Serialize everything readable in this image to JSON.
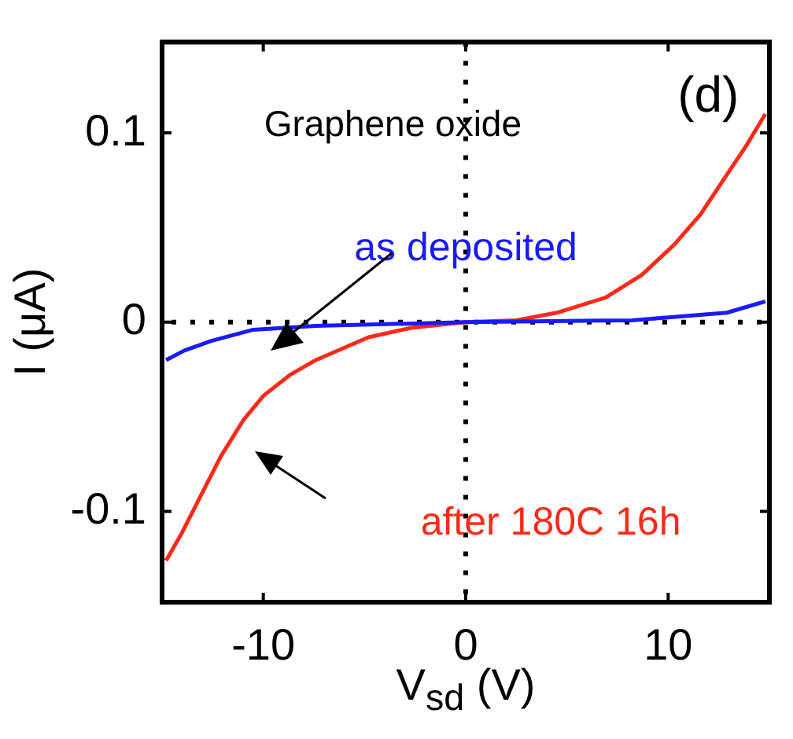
{
  "chart_data": {
    "type": "line",
    "xlabel": "V$_{sd}$ (V)",
    "ylabel": "I (μA)",
    "annotations": [
      "Graphene oxide",
      "(d)"
    ],
    "xlim": [
      -15,
      15
    ],
    "xticks": [
      -10,
      0,
      10
    ],
    "ylim": [
      -0.148,
      0.148
    ],
    "yticks": [
      -0.1,
      0,
      0.1
    ],
    "grid": false,
    "legend": false,
    "marker": "none",
    "line_style": "solid",
    "ref_lines": [
      {
        "axis": "x",
        "value": 0,
        "color": "#000000",
        "line_style": "dotted"
      },
      {
        "axis": "y",
        "value": 0,
        "color": "#000000",
        "line_style": "dotted"
      }
    ],
    "series": [
      {
        "name": "as deposited",
        "color": "#1a1aff",
        "x": [
          -14.8,
          -13.9,
          -12.6,
          -10.5,
          -7.4,
          0,
          8.2,
          12.9,
          14.8
        ],
        "values": [
          -0.02,
          -0.015,
          -0.01,
          -0.004,
          -0.002,
          0,
          0.001,
          0.005,
          0.011
        ]
      },
      {
        "name": "after 180C 16h",
        "color": "#ff2a1a",
        "x": [
          -14.8,
          -14.0,
          -13.1,
          -12.1,
          -11.0,
          -10.0,
          -8.7,
          -7.4,
          -6.1,
          -4.8,
          -2.7,
          0,
          2.5,
          4.5,
          6.9,
          8.7,
          10.3,
          11.6,
          12.9,
          13.9,
          14.8
        ],
        "values": [
          -0.126,
          -0.111,
          -0.092,
          -0.071,
          -0.052,
          -0.039,
          -0.028,
          -0.02,
          -0.014,
          -0.008,
          -0.003,
          0,
          0.001,
          0.005,
          0.013,
          0.025,
          0.041,
          0.057,
          0.078,
          0.094,
          0.11
        ]
      }
    ]
  }
}
